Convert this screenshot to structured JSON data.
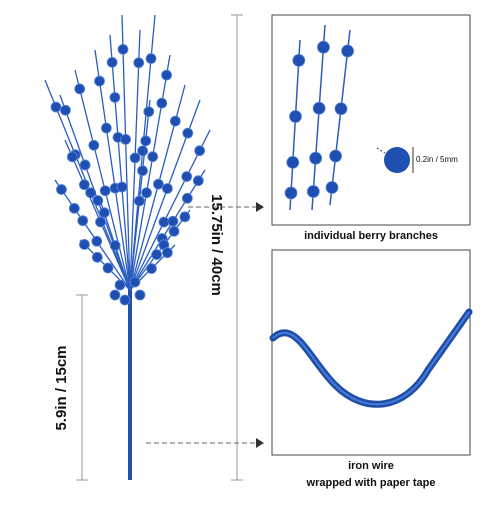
{
  "dimensions": {
    "height": "15.75in / 40cm",
    "stem": "5.9in / 15cm"
  },
  "detail_1": {
    "size": "0.2in / 5mm",
    "caption": "individual berry branches"
  },
  "detail_2": {
    "caption_lines": [
      "iron wire",
      "wrapped with paper tape"
    ]
  }
}
